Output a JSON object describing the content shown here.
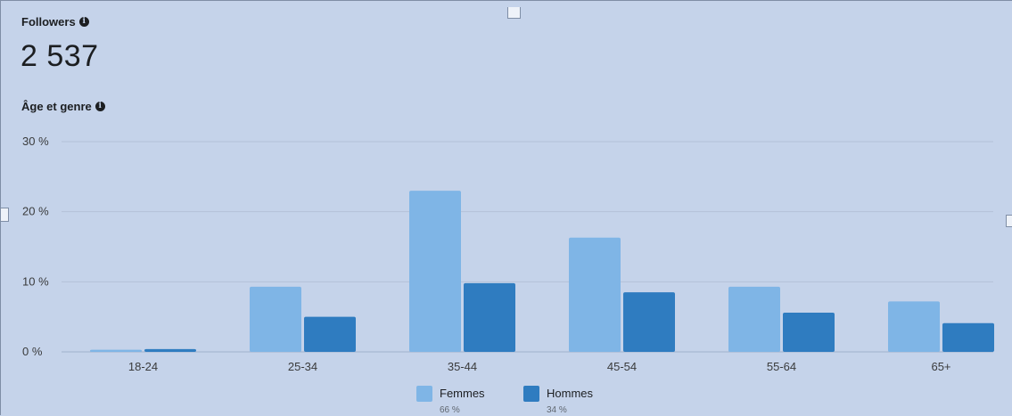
{
  "followers": {
    "title": "Followers",
    "count": "2 537"
  },
  "age_section": {
    "title": "Âge et genre"
  },
  "colors": {
    "background": "#c5d3ea",
    "femmes": "#7fb5e6",
    "hommes": "#2f7cc0",
    "gridline": "#b3c1d8"
  },
  "icons": {
    "info": "info-icon"
  },
  "chart_data": {
    "type": "bar",
    "title": "",
    "xlabel": "",
    "ylabel": "",
    "categories": [
      "18-24",
      "25-34",
      "35-44",
      "45-54",
      "55-64",
      "65+"
    ],
    "series": [
      {
        "name": "Femmes",
        "share": "66 %",
        "values": [
          0.3,
          9.3,
          23.0,
          16.3,
          9.3,
          7.2
        ]
      },
      {
        "name": "Hommes",
        "share": "34 %",
        "values": [
          0.4,
          5.0,
          9.8,
          8.5,
          5.6,
          4.1
        ]
      }
    ],
    "y_ticks": [
      {
        "value": 0,
        "label": "0 %"
      },
      {
        "value": 10,
        "label": "10 %"
      },
      {
        "value": 20,
        "label": "20 %"
      },
      {
        "value": 30,
        "label": "30 %"
      }
    ],
    "ylim": [
      0,
      30
    ],
    "grid": true,
    "legend_position": "bottom-center"
  }
}
